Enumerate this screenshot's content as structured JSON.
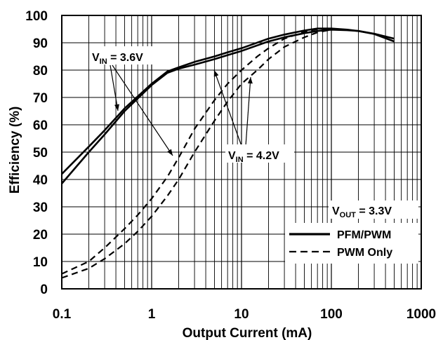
{
  "chart_data": {
    "type": "line",
    "xlabel": "Output Current (mA)",
    "ylabel": "Efficiency (%)",
    "x_scale": "log",
    "xlim": [
      0.1,
      1000
    ],
    "ylim": [
      0,
      100
    ],
    "x_ticks": [
      0.1,
      1,
      10,
      100,
      1000
    ],
    "x_tick_labels": [
      "0.1",
      "1",
      "10",
      "100",
      "1000"
    ],
    "y_ticks": [
      0,
      10,
      20,
      30,
      40,
      50,
      60,
      70,
      80,
      90,
      100
    ],
    "y_tick_labels": [
      "0",
      "10",
      "20",
      "30",
      "40",
      "50",
      "60",
      "70",
      "80",
      "90",
      "100"
    ],
    "grid": true,
    "legend_position": "bottom-right",
    "legend": [
      {
        "label": "PFM/PWM",
        "style": "solid"
      },
      {
        "label": "PWM Only",
        "style": "dashed"
      }
    ],
    "annotations": [
      {
        "main": "V",
        "sub": "IN",
        "rest": " = 3.6V"
      },
      {
        "main": "V",
        "sub": "IN",
        "rest": " = 4.2V"
      },
      {
        "main": "V",
        "sub": "OUT",
        "rest": " = 3.3V"
      }
    ],
    "series": [
      {
        "mode": "PFM/PWM",
        "vin": "3.6V",
        "style": "solid",
        "x": [
          0.1,
          0.2,
          0.3,
          0.5,
          1,
          1.5,
          2,
          3,
          5,
          7,
          10,
          20,
          30,
          50,
          70,
          100,
          150,
          200,
          300,
          500
        ],
        "y": [
          42,
          52,
          58,
          66,
          75,
          79.5,
          81,
          83,
          85,
          86.5,
          88,
          91.5,
          93,
          94.5,
          95.2,
          95.2,
          94.8,
          94.3,
          93.2,
          90.5
        ]
      },
      {
        "mode": "PFM/PWM",
        "vin": "4.2V",
        "style": "solid",
        "x": [
          0.1,
          0.2,
          0.3,
          0.5,
          1,
          1.5,
          2,
          3,
          5,
          7,
          10,
          20,
          30,
          50,
          70,
          100,
          150,
          200,
          300,
          500
        ],
        "y": [
          38.5,
          50,
          56.5,
          65,
          74.5,
          79,
          80.5,
          82,
          84,
          85.5,
          87,
          90.5,
          92,
          93.5,
          94.3,
          94.8,
          94.6,
          94.3,
          93.3,
          91.5
        ]
      },
      {
        "mode": "PWM Only",
        "vin": "3.6V",
        "style": "dashed",
        "x": [
          0.1,
          0.2,
          0.3,
          0.5,
          0.7,
          1,
          1.5,
          2,
          3,
          5,
          7,
          10,
          15,
          20,
          30,
          50,
          70,
          100
        ],
        "y": [
          5.5,
          10,
          15,
          22,
          27,
          33,
          41,
          48,
          58.5,
          69,
          75,
          80,
          85,
          88,
          91.5,
          94,
          95,
          95.2
        ]
      },
      {
        "mode": "PWM Only",
        "vin": "4.2V",
        "style": "dashed",
        "x": [
          0.1,
          0.2,
          0.3,
          0.5,
          0.7,
          1,
          1.5,
          2,
          3,
          5,
          7,
          10,
          15,
          20,
          30,
          50,
          70,
          100
        ],
        "y": [
          4,
          7.5,
          11,
          16.5,
          21,
          26.5,
          34,
          40,
          50,
          61.5,
          68.5,
          75,
          80,
          84,
          88.5,
          92,
          93.8,
          94.8
        ]
      }
    ]
  }
}
